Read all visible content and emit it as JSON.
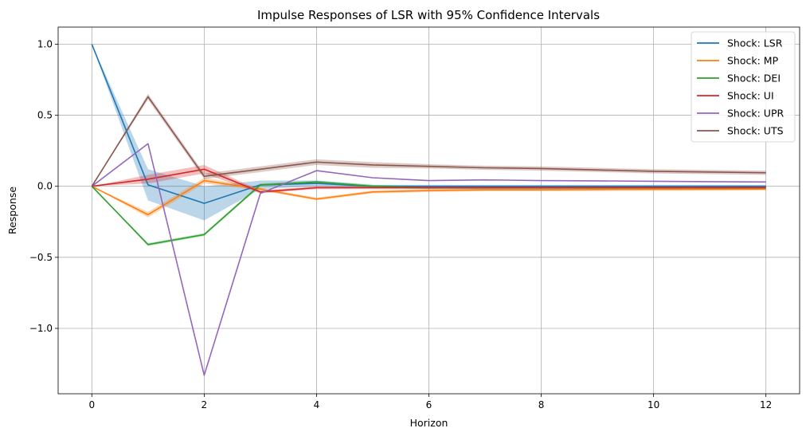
{
  "chart_data": {
    "type": "line",
    "title": "Impulse Responses of LSR with 95% Confidence Intervals",
    "xlabel": "Horizon",
    "ylabel": "Response",
    "xlim": [
      -0.6,
      12.6
    ],
    "ylim": [
      -1.46,
      1.12
    ],
    "xticks": [
      0,
      2,
      4,
      6,
      8,
      10,
      12
    ],
    "yticks": [
      -1.0,
      -0.5,
      0.0,
      0.5,
      1.0
    ],
    "xtick_labels": [
      "0",
      "2",
      "4",
      "6",
      "8",
      "10",
      "12"
    ],
    "ytick_labels": [
      "−1.0",
      "−0.5",
      "0.0",
      "0.5",
      "1.0"
    ],
    "grid": true,
    "legend_position": "top-right",
    "x": [
      0,
      1,
      2,
      3,
      4,
      5,
      6,
      7,
      8,
      9,
      10,
      11,
      12
    ],
    "series": [
      {
        "name": "Shock: LSR",
        "color": "#1f77b4",
        "values": [
          1.0,
          0.01,
          -0.12,
          0.01,
          0.02,
          0.0,
          0.0,
          0.0,
          0.0,
          0.0,
          0.0,
          0.0,
          0.0
        ],
        "lower": [
          1.0,
          -0.1,
          -0.24,
          -0.02,
          0.0,
          -0.01,
          -0.01,
          -0.01,
          -0.01,
          -0.01,
          -0.01,
          -0.01,
          -0.01
        ],
        "upper": [
          1.0,
          0.12,
          0.0,
          0.04,
          0.04,
          0.01,
          0.01,
          0.01,
          0.01,
          0.01,
          0.01,
          0.01,
          0.01
        ]
      },
      {
        "name": "Shock: MP",
        "color": "#ff7f0e",
        "values": [
          0.0,
          -0.2,
          0.04,
          -0.02,
          -0.09,
          -0.04,
          -0.03,
          -0.025,
          -0.025,
          -0.023,
          -0.022,
          -0.021,
          -0.02
        ],
        "lower": [
          0.0,
          -0.22,
          0.02,
          -0.03,
          -0.1,
          -0.05,
          -0.04,
          -0.035,
          -0.035,
          -0.033,
          -0.032,
          -0.031,
          -0.03
        ],
        "upper": [
          0.0,
          -0.18,
          0.06,
          -0.01,
          -0.08,
          -0.03,
          -0.02,
          -0.015,
          -0.015,
          -0.013,
          -0.012,
          -0.011,
          -0.01
        ]
      },
      {
        "name": "Shock: DEI",
        "color": "#2ca02c",
        "values": [
          0.0,
          -0.41,
          -0.34,
          0.01,
          0.03,
          0.0,
          -0.01,
          -0.01,
          -0.01,
          -0.01,
          -0.01,
          -0.01,
          -0.01
        ],
        "lower": [
          0.0,
          -0.42,
          -0.35,
          0.0,
          0.02,
          -0.01,
          -0.02,
          -0.02,
          -0.02,
          -0.02,
          -0.02,
          -0.02,
          -0.02
        ],
        "upper": [
          0.0,
          -0.4,
          -0.33,
          0.02,
          0.04,
          0.01,
          0.0,
          0.0,
          0.0,
          0.0,
          0.0,
          0.0,
          0.0
        ]
      },
      {
        "name": "Shock: UI",
        "color": "#d62728",
        "values": [
          0.0,
          0.05,
          0.12,
          -0.04,
          -0.01,
          -0.01,
          -0.01,
          -0.01,
          -0.01,
          -0.01,
          -0.01,
          -0.01,
          -0.01
        ],
        "lower": [
          0.0,
          0.02,
          0.09,
          -0.05,
          -0.02,
          -0.02,
          -0.02,
          -0.02,
          -0.02,
          -0.02,
          -0.02,
          -0.02,
          -0.02
        ],
        "upper": [
          0.0,
          0.08,
          0.15,
          -0.03,
          0.0,
          0.0,
          0.0,
          0.0,
          0.0,
          0.0,
          0.0,
          0.0,
          0.0
        ]
      },
      {
        "name": "Shock: UPR",
        "color": "#9467bd",
        "values": [
          0.0,
          0.3,
          -1.33,
          -0.05,
          0.11,
          0.06,
          0.04,
          0.045,
          0.04,
          0.038,
          0.035,
          0.032,
          0.03
        ],
        "lower": [
          0.0,
          0.3,
          -1.33,
          -0.05,
          0.11,
          0.06,
          0.04,
          0.045,
          0.04,
          0.038,
          0.035,
          0.032,
          0.03
        ],
        "upper": [
          0.0,
          0.3,
          -1.33,
          -0.05,
          0.11,
          0.06,
          0.04,
          0.045,
          0.04,
          0.038,
          0.035,
          0.032,
          0.03
        ]
      },
      {
        "name": "Shock: UTS",
        "color": "#8c564b",
        "values": [
          0.0,
          0.63,
          0.07,
          0.12,
          0.17,
          0.15,
          0.14,
          0.13,
          0.125,
          0.115,
          0.105,
          0.1,
          0.095
        ],
        "lower": [
          0.0,
          0.61,
          0.05,
          0.1,
          0.15,
          0.13,
          0.125,
          0.115,
          0.11,
          0.1,
          0.09,
          0.085,
          0.08
        ],
        "upper": [
          0.0,
          0.65,
          0.09,
          0.14,
          0.19,
          0.17,
          0.155,
          0.145,
          0.14,
          0.13,
          0.12,
          0.115,
          0.11
        ]
      }
    ]
  }
}
